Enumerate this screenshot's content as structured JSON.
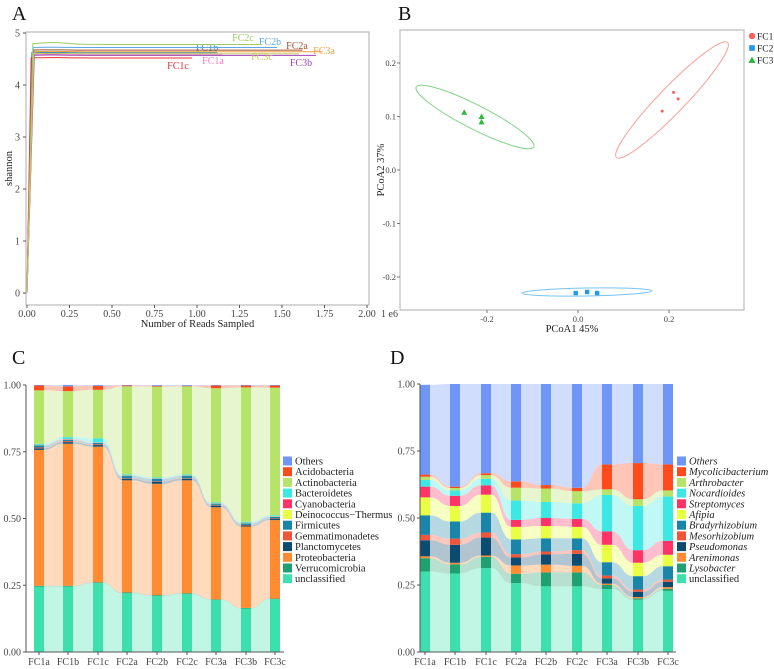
{
  "panels": {
    "a": "A",
    "b": "B",
    "c": "C",
    "d": "D"
  },
  "chart_data": [
    {
      "id": "A",
      "type": "line",
      "title": "",
      "xlabel": "Number of Reads Sampled",
      "ylabel": "shannon",
      "x_unit_label": "1 e6",
      "xlim": [
        0,
        2.0
      ],
      "ylim": [
        0,
        5
      ],
      "xticks": [
        "0.00",
        "0.25",
        "0.50",
        "0.75",
        "1.00",
        "1.25",
        "1.50",
        "1.75",
        "2.00"
      ],
      "yticks": [
        "0",
        "1",
        "2",
        "3",
        "4",
        "5"
      ],
      "series": [
        {
          "name": "FC1a",
          "color": "#f27ec0",
          "plateau": 4.58,
          "max_reads": 1.15
        },
        {
          "name": "FC1b",
          "color": "#3a8fc0",
          "plateau": 4.62,
          "max_reads": 1.12
        },
        {
          "name": "FC1c",
          "color": "#e8303a",
          "plateau": 4.52,
          "max_reads": 0.97
        },
        {
          "name": "FC2a",
          "color": "#a0522d",
          "plateau": 4.67,
          "max_reads": 1.62
        },
        {
          "name": "FC2b",
          "color": "#5aa8e8",
          "plateau": 4.72,
          "max_reads": 1.47
        },
        {
          "name": "FC2c",
          "color": "#9acd60",
          "plateau": 4.78,
          "max_reads": 1.38
        },
        {
          "name": "FC3a",
          "color": "#f0a040",
          "plateau": 4.64,
          "max_reads": 1.74
        },
        {
          "name": "FC3b",
          "color": "#a040c0",
          "plateau": 4.57,
          "max_reads": 1.7
        },
        {
          "name": "FC3c",
          "color": "#c8c860",
          "plateau": 4.6,
          "max_reads": 1.6
        }
      ]
    },
    {
      "id": "B",
      "type": "scatter",
      "xlabel": "PCoA1  45%",
      "ylabel": "PCoA2  37%",
      "xticks": [
        "-0.2",
        "0.0",
        "0.2"
      ],
      "xtick_values": [
        -0.2,
        0.0,
        0.2
      ],
      "yticks": [
        "0.2",
        "0.1",
        "0.0",
        "-0.1",
        "-0.2"
      ],
      "ytick_values": [
        0.2,
        0.1,
        0.0,
        -0.1,
        -0.2
      ],
      "legend_position": "top-right",
      "series": [
        {
          "name": "FC1",
          "color": "#f8605a",
          "marker": "circle",
          "points": [
            [
              0.21,
              0.145
            ],
            [
              0.22,
              0.133
            ],
            [
              0.185,
              0.11
            ]
          ]
        },
        {
          "name": "FC2",
          "color": "#1e9ae8",
          "marker": "square",
          "points": [
            [
              -0.005,
              -0.23
            ],
            [
              0.02,
              -0.228
            ],
            [
              0.042,
              -0.23
            ]
          ]
        },
        {
          "name": "FC3",
          "color": "#2cb83a",
          "marker": "triangle",
          "points": [
            [
              -0.25,
              0.108
            ],
            [
              -0.212,
              0.1
            ],
            [
              -0.212,
              0.09
            ]
          ]
        }
      ]
    },
    {
      "id": "C",
      "type": "bar",
      "stacked": true,
      "categories": [
        "FC1a",
        "FC1b",
        "FC1c",
        "FC2a",
        "FC2b",
        "FC2c",
        "FC3a",
        "FC3b",
        "FC3c"
      ],
      "yticks": [
        "0.00",
        "0.25",
        "0.50",
        "0.75",
        "1.00"
      ],
      "ylim": [
        0,
        1
      ],
      "legend_position": "right",
      "series": [
        {
          "name": "unclassified",
          "color": "#3ddfac",
          "values": [
            0.245,
            0.245,
            0.258,
            0.22,
            0.21,
            0.217,
            0.195,
            0.163,
            0.198
          ]
        },
        {
          "name": "Verrucomicrobia",
          "color": "#1fa070",
          "values": [
            0.003,
            0.003,
            0.003,
            0.003,
            0.003,
            0.003,
            0.002,
            0.002,
            0.002
          ]
        },
        {
          "name": "Proteobacteria",
          "color": "#ff8c33",
          "values": [
            0.509,
            0.532,
            0.508,
            0.42,
            0.417,
            0.423,
            0.345,
            0.305,
            0.294
          ]
        },
        {
          "name": "Planctomycetes",
          "color": "#0b4c70",
          "values": [
            0.006,
            0.006,
            0.006,
            0.006,
            0.008,
            0.006,
            0.005,
            0.004,
            0.004
          ]
        },
        {
          "name": "Gemmatimonadetes",
          "color": "#f0553a",
          "values": [
            0.003,
            0.004,
            0.003,
            0.002,
            0.002,
            0.002,
            0.002,
            0.002,
            0.002
          ]
        },
        {
          "name": "Firmicutes",
          "color": "#1a85a8",
          "values": [
            0.008,
            0.004,
            0.005,
            0.008,
            0.008,
            0.008,
            0.005,
            0.006,
            0.006
          ]
        },
        {
          "name": "Deinococcus−Thermus",
          "color": "#e8ff44",
          "values": [
            0.001,
            0.001,
            0.001,
            0.001,
            0.001,
            0.001,
            0.001,
            0.001,
            0.001
          ]
        },
        {
          "name": "Cyanobacteria",
          "color": "#ff3366",
          "values": [
            0.001,
            0.002,
            0.001,
            0.001,
            0.001,
            0.001,
            0.001,
            0.001,
            0.001
          ]
        },
        {
          "name": "Bacteroidetes",
          "color": "#3ce8e4",
          "values": [
            0.004,
            0.008,
            0.015,
            0.004,
            0.004,
            0.004,
            0.004,
            0.004,
            0.004
          ]
        },
        {
          "name": "Actinobacteria",
          "color": "#b6e36a",
          "values": [
            0.2,
            0.172,
            0.182,
            0.33,
            0.34,
            0.33,
            0.428,
            0.503,
            0.478
          ]
        },
        {
          "name": "Acidobacteria",
          "color": "#ff4a1c",
          "values": [
            0.018,
            0.018,
            0.015,
            0.003,
            0.003,
            0.002,
            0.01,
            0.007,
            0.008
          ]
        },
        {
          "name": "Others",
          "color": "#6f96f7",
          "values": [
            0.002,
            0.005,
            0.003,
            0.002,
            0.003,
            0.003,
            0.002,
            0.002,
            0.002
          ]
        }
      ]
    },
    {
      "id": "D",
      "type": "bar",
      "stacked": true,
      "categories": [
        "FC1a",
        "FC1b",
        "FC1c",
        "FC2a",
        "FC2b",
        "FC2c",
        "FC3a",
        "FC3b",
        "FC3c"
      ],
      "yticks": [
        "0.00",
        "0.25",
        "0.50",
        "0.75",
        "1.00"
      ],
      "ylim": [
        0,
        1
      ],
      "legend_position": "right",
      "series": [
        {
          "name": "unclassified",
          "italic": false,
          "color": "#3ddfac",
          "values": [
            0.3,
            0.293,
            0.313,
            0.257,
            0.245,
            0.245,
            0.235,
            0.195,
            0.228
          ]
        },
        {
          "name": "Lysobacter",
          "italic": true,
          "color": "#1fa070",
          "values": [
            0.05,
            0.034,
            0.042,
            0.035,
            0.052,
            0.052,
            0.015,
            0.005,
            0.008
          ]
        },
        {
          "name": "Arenimonas",
          "italic": true,
          "color": "#ff8c33",
          "values": [
            0.007,
            0.006,
            0.005,
            0.031,
            0.029,
            0.025,
            0.005,
            0.005,
            0.006
          ]
        },
        {
          "name": "Pseudomonas",
          "italic": true,
          "color": "#0b4c70",
          "values": [
            0.06,
            0.067,
            0.067,
            0.03,
            0.038,
            0.044,
            0.02,
            0.02,
            0.02
          ]
        },
        {
          "name": "Mesorhizobium",
          "italic": true,
          "color": "#f0553a",
          "values": [
            0.02,
            0.023,
            0.019,
            0.012,
            0.011,
            0.014,
            0.01,
            0.008,
            0.008
          ]
        },
        {
          "name": "Bradyrhizobium",
          "italic": true,
          "color": "#1a85a8",
          "values": [
            0.073,
            0.064,
            0.074,
            0.055,
            0.049,
            0.044,
            0.05,
            0.05,
            0.05
          ]
        },
        {
          "name": "Afipia",
          "italic": true,
          "color": "#e8ff44",
          "values": [
            0.067,
            0.058,
            0.067,
            0.047,
            0.046,
            0.043,
            0.065,
            0.05,
            0.043
          ]
        },
        {
          "name": "Streptomyces",
          "italic": true,
          "color": "#ff3366",
          "values": [
            0.04,
            0.038,
            0.035,
            0.026,
            0.03,
            0.03,
            0.05,
            0.047,
            0.052
          ]
        },
        {
          "name": "Nocardioides",
          "italic": true,
          "color": "#3ce8e4",
          "values": [
            0.025,
            0.02,
            0.024,
            0.072,
            0.06,
            0.058,
            0.136,
            0.165,
            0.165
          ]
        },
        {
          "name": "Arthrobacter",
          "italic": true,
          "color": "#b6e36a",
          "values": [
            0.012,
            0.009,
            0.014,
            0.048,
            0.05,
            0.045,
            0.021,
            0.025,
            0.023
          ]
        },
        {
          "name": "Mycolicibacterium",
          "italic": true,
          "color": "#ff4a1c",
          "values": [
            0.008,
            0.005,
            0.007,
            0.024,
            0.013,
            0.013,
            0.093,
            0.135,
            0.097
          ]
        },
        {
          "name": "Others",
          "italic": true,
          "color": "#6f96f7",
          "values": [
            0.335,
            0.383,
            0.333,
            0.363,
            0.377,
            0.387,
            0.3,
            0.295,
            0.3
          ]
        }
      ]
    }
  ]
}
